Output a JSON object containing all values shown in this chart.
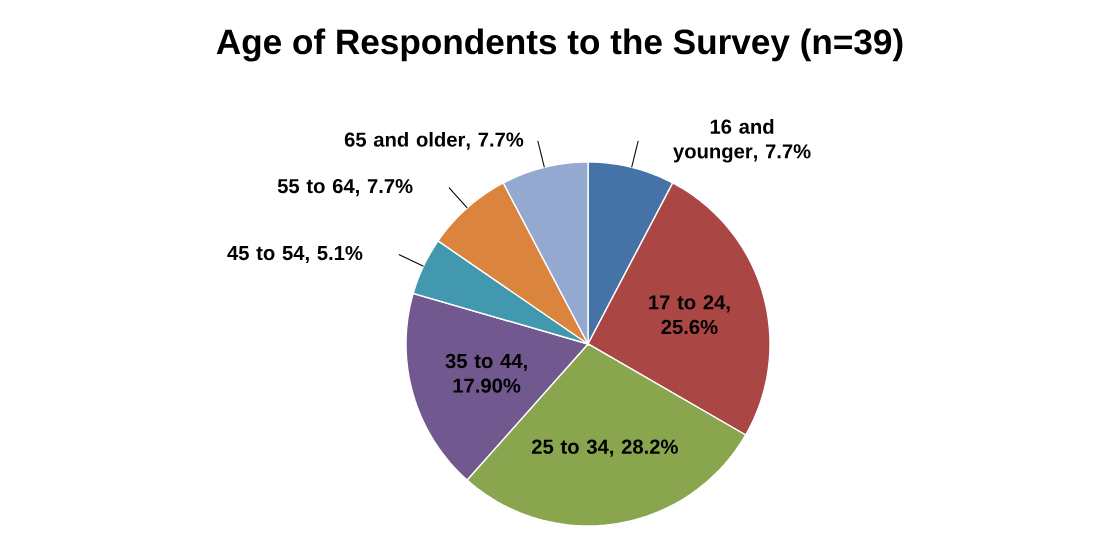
{
  "chart_data": {
    "type": "pie",
    "title": "Age of Respondents to the Survey (n=39)",
    "categories": [
      "16 and younger",
      "17 to 24",
      "25 to 34",
      "35 to 44",
      "45 to 54",
      "55 to 64",
      "65 and older"
    ],
    "values": [
      7.7,
      25.6,
      28.2,
      17.9,
      5.1,
      7.7,
      7.7
    ],
    "value_labels": [
      ", 7.7%",
      ", 25.6%",
      ", 28.2%",
      ", 17.90%",
      ", 5.1%",
      ", 7.7%",
      ", 7.7%"
    ],
    "colors": [
      "#4572a7",
      "#aa4643",
      "#89a54e",
      "#71588f",
      "#4198af",
      "#db843d",
      "#93a9cf"
    ]
  }
}
